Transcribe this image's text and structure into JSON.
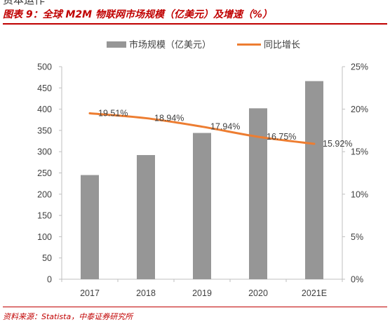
{
  "header": {
    "title": "图表 9：全球 M2M 物联网市场规模（亿美元）及增速（%）"
  },
  "footer": {
    "source": "资料来源：Statista，中泰证券研究所"
  },
  "colors": {
    "bar": "#969696",
    "line": "#ed7d31",
    "accent": "#c00000"
  },
  "chart_data": {
    "type": "bar",
    "categories": [
      "2017",
      "2018",
      "2019",
      "2020",
      "2021E"
    ],
    "series": [
      {
        "name": "市场规模（亿美元）",
        "type": "bar",
        "axis": "left",
        "values": [
          245,
          292,
          344,
          402,
          466
        ]
      },
      {
        "name": "同比增长",
        "type": "line",
        "axis": "right",
        "values": [
          19.51,
          18.94,
          17.94,
          16.75,
          15.92
        ],
        "labels": [
          "19.51%",
          "18.94%",
          "17.94%",
          "16.75%",
          "15.92%"
        ]
      }
    ],
    "ylim": [
      0,
      500
    ],
    "yticks": [
      "0",
      "50",
      "100",
      "150",
      "200",
      "250",
      "300",
      "350",
      "400",
      "450",
      "500"
    ],
    "y2lim": [
      0,
      25
    ],
    "y2ticks": [
      "0%",
      "5%",
      "10%",
      "15%",
      "20%",
      "25%"
    ],
    "legend": "top-center",
    "grid": false
  }
}
